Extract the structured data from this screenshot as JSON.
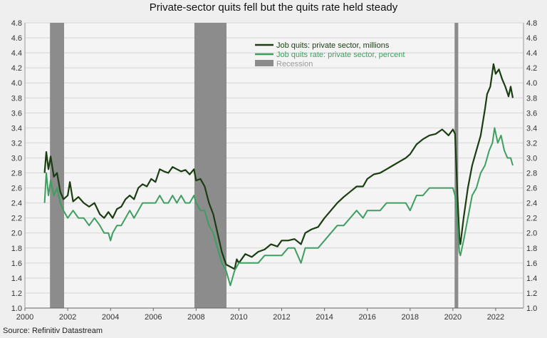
{
  "chart_data": {
    "type": "line",
    "title": "Private-sector quits fell but the quits rate held steady",
    "source": "Source: Refinitiv Datastream",
    "xlabel": "",
    "ylabel": "",
    "xlim": [
      2000,
      2023.3
    ],
    "ylim": [
      1.0,
      4.8
    ],
    "x_ticks": [
      "2000",
      "2002",
      "2004",
      "2006",
      "2008",
      "2010",
      "2012",
      "2014",
      "2016",
      "2018",
      "2020",
      "2022"
    ],
    "y_ticks": [
      "1.0",
      "1.2",
      "1.4",
      "1.6",
      "1.8",
      "2.0",
      "2.2",
      "2.4",
      "2.6",
      "2.8",
      "3.0",
      "3.2",
      "3.4",
      "3.6",
      "3.8",
      "4.0",
      "4.2",
      "4.4",
      "4.6",
      "4.8"
    ],
    "grid": true,
    "legend_position": "top-center",
    "recessions": [
      {
        "start": 2001.17,
        "end": 2001.83
      },
      {
        "start": 2007.92,
        "end": 2009.42
      },
      {
        "start": 2020.08,
        "end": 2020.25
      }
    ],
    "series": [
      {
        "name": "Job quits: private sector, millions",
        "color": "#1a3d12",
        "points": [
          [
            2000.92,
            2.8
          ],
          [
            2001.0,
            3.08
          ],
          [
            2001.1,
            2.85
          ],
          [
            2001.2,
            3.02
          ],
          [
            2001.35,
            2.75
          ],
          [
            2001.5,
            2.8
          ],
          [
            2001.65,
            2.55
          ],
          [
            2001.8,
            2.45
          ],
          [
            2002.0,
            2.5
          ],
          [
            2002.1,
            2.68
          ],
          [
            2002.25,
            2.42
          ],
          [
            2002.5,
            2.48
          ],
          [
            2002.75,
            2.4
          ],
          [
            2003.0,
            2.35
          ],
          [
            2003.25,
            2.4
          ],
          [
            2003.5,
            2.25
          ],
          [
            2003.7,
            2.2
          ],
          [
            2003.9,
            2.28
          ],
          [
            2004.1,
            2.2
          ],
          [
            2004.3,
            2.32
          ],
          [
            2004.5,
            2.35
          ],
          [
            2004.7,
            2.45
          ],
          [
            2004.9,
            2.5
          ],
          [
            2005.1,
            2.45
          ],
          [
            2005.3,
            2.6
          ],
          [
            2005.5,
            2.65
          ],
          [
            2005.7,
            2.62
          ],
          [
            2005.9,
            2.72
          ],
          [
            2006.1,
            2.68
          ],
          [
            2006.3,
            2.85
          ],
          [
            2006.5,
            2.82
          ],
          [
            2006.7,
            2.8
          ],
          [
            2006.9,
            2.88
          ],
          [
            2007.1,
            2.85
          ],
          [
            2007.3,
            2.82
          ],
          [
            2007.5,
            2.84
          ],
          [
            2007.7,
            2.78
          ],
          [
            2007.9,
            2.85
          ],
          [
            2008.0,
            2.7
          ],
          [
            2008.2,
            2.72
          ],
          [
            2008.4,
            2.62
          ],
          [
            2008.6,
            2.4
          ],
          [
            2008.8,
            2.25
          ],
          [
            2009.0,
            2.0
          ],
          [
            2009.2,
            1.75
          ],
          [
            2009.4,
            1.58
          ],
          [
            2009.6,
            1.55
          ],
          [
            2009.8,
            1.52
          ],
          [
            2009.9,
            1.65
          ],
          [
            2010.0,
            1.6
          ],
          [
            2010.3,
            1.72
          ],
          [
            2010.6,
            1.68
          ],
          [
            2010.9,
            1.75
          ],
          [
            2011.2,
            1.78
          ],
          [
            2011.5,
            1.85
          ],
          [
            2011.8,
            1.82
          ],
          [
            2012.0,
            1.9
          ],
          [
            2012.3,
            1.9
          ],
          [
            2012.6,
            1.92
          ],
          [
            2012.9,
            1.85
          ],
          [
            2013.1,
            2.0
          ],
          [
            2013.4,
            2.05
          ],
          [
            2013.7,
            2.08
          ],
          [
            2014.0,
            2.2
          ],
          [
            2014.3,
            2.3
          ],
          [
            2014.6,
            2.4
          ],
          [
            2014.9,
            2.48
          ],
          [
            2015.2,
            2.55
          ],
          [
            2015.5,
            2.62
          ],
          [
            2015.8,
            2.62
          ],
          [
            2016.0,
            2.72
          ],
          [
            2016.3,
            2.78
          ],
          [
            2016.6,
            2.8
          ],
          [
            2016.9,
            2.85
          ],
          [
            2017.2,
            2.9
          ],
          [
            2017.5,
            2.95
          ],
          [
            2017.8,
            3.0
          ],
          [
            2018.0,
            3.05
          ],
          [
            2018.3,
            3.18
          ],
          [
            2018.6,
            3.25
          ],
          [
            2018.9,
            3.3
          ],
          [
            2019.2,
            3.32
          ],
          [
            2019.5,
            3.38
          ],
          [
            2019.8,
            3.3
          ],
          [
            2020.0,
            3.38
          ],
          [
            2020.1,
            3.32
          ],
          [
            2020.2,
            2.6
          ],
          [
            2020.3,
            1.95
          ],
          [
            2020.35,
            1.85
          ],
          [
            2020.5,
            2.2
          ],
          [
            2020.7,
            2.6
          ],
          [
            2020.9,
            2.9
          ],
          [
            2021.1,
            3.1
          ],
          [
            2021.3,
            3.3
          ],
          [
            2021.5,
            3.65
          ],
          [
            2021.6,
            3.85
          ],
          [
            2021.75,
            3.95
          ],
          [
            2021.9,
            4.25
          ],
          [
            2022.0,
            4.12
          ],
          [
            2022.15,
            4.18
          ],
          [
            2022.3,
            4.05
          ],
          [
            2022.45,
            3.95
          ],
          [
            2022.6,
            3.82
          ],
          [
            2022.7,
            3.95
          ],
          [
            2022.8,
            3.8
          ]
        ]
      },
      {
        "name": "Job quits rate: private sector, percent",
        "color": "#3e9e60",
        "points": [
          [
            2000.92,
            2.4
          ],
          [
            2001.0,
            2.8
          ],
          [
            2001.1,
            2.5
          ],
          [
            2001.2,
            2.7
          ],
          [
            2001.35,
            2.5
          ],
          [
            2001.5,
            2.6
          ],
          [
            2001.65,
            2.4
          ],
          [
            2001.8,
            2.3
          ],
          [
            2002.0,
            2.2
          ],
          [
            2002.25,
            2.3
          ],
          [
            2002.5,
            2.2
          ],
          [
            2002.75,
            2.2
          ],
          [
            2003.0,
            2.1
          ],
          [
            2003.25,
            2.2
          ],
          [
            2003.5,
            2.1
          ],
          [
            2003.7,
            2.0
          ],
          [
            2003.9,
            2.0
          ],
          [
            2004.0,
            1.9
          ],
          [
            2004.1,
            2.0
          ],
          [
            2004.3,
            2.1
          ],
          [
            2004.5,
            2.1
          ],
          [
            2004.7,
            2.2
          ],
          [
            2004.9,
            2.3
          ],
          [
            2005.1,
            2.2
          ],
          [
            2005.3,
            2.3
          ],
          [
            2005.5,
            2.4
          ],
          [
            2005.7,
            2.4
          ],
          [
            2005.9,
            2.4
          ],
          [
            2006.1,
            2.4
          ],
          [
            2006.3,
            2.5
          ],
          [
            2006.5,
            2.4
          ],
          [
            2006.7,
            2.4
          ],
          [
            2006.9,
            2.5
          ],
          [
            2007.1,
            2.4
          ],
          [
            2007.3,
            2.5
          ],
          [
            2007.5,
            2.4
          ],
          [
            2007.7,
            2.4
          ],
          [
            2007.9,
            2.5
          ],
          [
            2008.0,
            2.4
          ],
          [
            2008.2,
            2.3
          ],
          [
            2008.4,
            2.3
          ],
          [
            2008.6,
            2.1
          ],
          [
            2008.8,
            2.0
          ],
          [
            2009.0,
            1.8
          ],
          [
            2009.2,
            1.6
          ],
          [
            2009.4,
            1.5
          ],
          [
            2009.6,
            1.3
          ],
          [
            2009.8,
            1.5
          ],
          [
            2010.0,
            1.6
          ],
          [
            2010.3,
            1.6
          ],
          [
            2010.6,
            1.6
          ],
          [
            2010.9,
            1.6
          ],
          [
            2011.2,
            1.7
          ],
          [
            2011.5,
            1.7
          ],
          [
            2011.8,
            1.7
          ],
          [
            2012.0,
            1.7
          ],
          [
            2012.3,
            1.8
          ],
          [
            2012.6,
            1.8
          ],
          [
            2012.9,
            1.6
          ],
          [
            2013.1,
            1.8
          ],
          [
            2013.4,
            1.8
          ],
          [
            2013.7,
            1.8
          ],
          [
            2014.0,
            1.9
          ],
          [
            2014.3,
            2.0
          ],
          [
            2014.6,
            2.1
          ],
          [
            2014.9,
            2.1
          ],
          [
            2015.2,
            2.2
          ],
          [
            2015.5,
            2.3
          ],
          [
            2015.8,
            2.2
          ],
          [
            2016.0,
            2.3
          ],
          [
            2016.3,
            2.3
          ],
          [
            2016.6,
            2.3
          ],
          [
            2016.9,
            2.4
          ],
          [
            2017.2,
            2.4
          ],
          [
            2017.5,
            2.4
          ],
          [
            2017.8,
            2.4
          ],
          [
            2018.0,
            2.3
          ],
          [
            2018.3,
            2.5
          ],
          [
            2018.6,
            2.5
          ],
          [
            2018.9,
            2.6
          ],
          [
            2019.2,
            2.6
          ],
          [
            2019.5,
            2.6
          ],
          [
            2019.8,
            2.6
          ],
          [
            2020.0,
            2.6
          ],
          [
            2020.1,
            2.5
          ],
          [
            2020.2,
            2.2
          ],
          [
            2020.3,
            1.75
          ],
          [
            2020.35,
            1.7
          ],
          [
            2020.5,
            1.9
          ],
          [
            2020.7,
            2.2
          ],
          [
            2020.9,
            2.5
          ],
          [
            2021.1,
            2.6
          ],
          [
            2021.3,
            2.8
          ],
          [
            2021.5,
            2.9
          ],
          [
            2021.7,
            3.1
          ],
          [
            2021.85,
            3.2
          ],
          [
            2021.95,
            3.4
          ],
          [
            2022.1,
            3.2
          ],
          [
            2022.25,
            3.3
          ],
          [
            2022.4,
            3.1
          ],
          [
            2022.55,
            3.0
          ],
          [
            2022.7,
            3.0
          ],
          [
            2022.8,
            2.9
          ]
        ]
      },
      {
        "name": "Recession",
        "color": "#8c8c8c"
      }
    ]
  }
}
